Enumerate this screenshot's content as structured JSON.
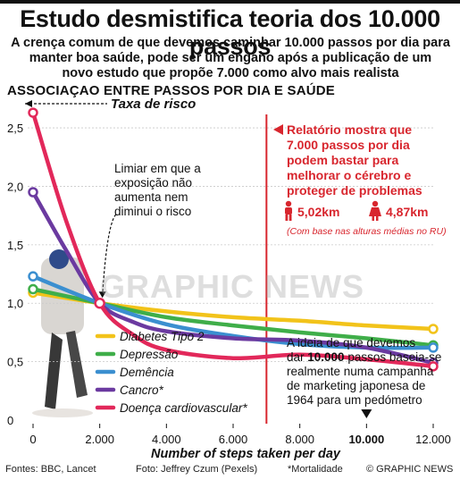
{
  "header": {
    "title": "Estudo desmistifica teoria dos 10.000 passos",
    "subtitle_lines": [
      "A crença comum de que devemos caminhar 10.000 passos por dia para",
      "manter boa saúde, pode ser um engano após a publicação de um",
      "novo estudo que propõe 7.000 como alvo mais realista"
    ],
    "section_label": "ASSOCIAÇAO ENTRE PASSOS POR DIA E SAÚDE"
  },
  "annotations": {
    "risk_rate": "Taxa de risco",
    "threshold_lines": [
      "Limiar em que a",
      "exposição não",
      "aumenta nem",
      "diminui o risco"
    ],
    "report_lines": [
      "Relatório mostra que",
      "7.000 passos por dia",
      "podem bastar para",
      "melhorar o cérebro e",
      "proteger de problemas"
    ],
    "male_distance": "5,02km",
    "female_distance": "4,87km",
    "distance_note": "(Com base nas alturas médias no RU)",
    "idea_lines": [
      [
        {
          "t": "A ideia de que devemos",
          "b": false
        }
      ],
      [
        {
          "t": "dar ",
          "b": false
        },
        {
          "t": "10.000",
          "b": true
        },
        {
          "t": " passos baseia-se",
          "b": false
        }
      ],
      [
        {
          "t": "realmente numa campanha",
          "b": false
        }
      ],
      [
        {
          "t": "de marketing japonesa de",
          "b": false
        }
      ],
      [
        {
          "t": "1964 para um pedómetro",
          "b": false
        }
      ]
    ],
    "watermark": "GRAPHIC NEWS"
  },
  "colors": {
    "red_accent": "#d8262e",
    "diabetes": "#f2c31a",
    "depression": "#3fae49",
    "dementia": "#3b8fd0",
    "cancer": "#6b3aa0",
    "cardio": "#e2285a"
  },
  "footer": {
    "sources": "Fontes: BBC, Lancet",
    "photo": "Foto: Jeffrey Czum (Pexels)",
    "mortality_note": "*Mortalidade",
    "credit": "© GRAPHIC NEWS"
  },
  "chart_data": {
    "type": "line",
    "xlabel": "Number of steps taken per day",
    "ylabel": "Taxa de risco",
    "xlim": [
      0,
      12000
    ],
    "ylim": [
      0,
      2.6
    ],
    "x_ticks": [
      {
        "v": 0,
        "label": "0",
        "bold": false
      },
      {
        "v": 2000,
        "label": "2.000",
        "bold": false
      },
      {
        "v": 4000,
        "label": "4.000",
        "bold": false
      },
      {
        "v": 6000,
        "label": "6.000",
        "bold": false
      },
      {
        "v": 8000,
        "label": "8.000",
        "bold": false
      },
      {
        "v": 10000,
        "label": "10.000",
        "bold": true
      },
      {
        "v": 12000,
        "label": "12.000",
        "bold": false
      }
    ],
    "y_ticks": [
      {
        "v": 0,
        "label": "0"
      },
      {
        "v": 0.5,
        "label": "0,5"
      },
      {
        "v": 1.0,
        "label": "1,0"
      },
      {
        "v": 1.5,
        "label": "1,5"
      },
      {
        "v": 2.0,
        "label": "2,0"
      },
      {
        "v": 2.5,
        "label": "2,5"
      }
    ],
    "reference_x": 7000,
    "threshold": {
      "x": 2000,
      "y": 1.0
    },
    "series": [
      {
        "name": "Diabetes Tipo 2",
        "color_key": "diabetes",
        "points": [
          [
            0,
            1.09
          ],
          [
            2000,
            1.0
          ],
          [
            4000,
            0.93
          ],
          [
            6000,
            0.88
          ],
          [
            8000,
            0.85
          ],
          [
            10000,
            0.81
          ],
          [
            12000,
            0.78
          ]
        ]
      },
      {
        "name": "Depressão",
        "color_key": "depression",
        "points": [
          [
            0,
            1.12
          ],
          [
            2000,
            1.0
          ],
          [
            4000,
            0.88
          ],
          [
            6000,
            0.81
          ],
          [
            8000,
            0.75
          ],
          [
            10000,
            0.7
          ],
          [
            12000,
            0.64
          ]
        ]
      },
      {
        "name": "Demência",
        "color_key": "dementia",
        "points": [
          [
            0,
            1.23
          ],
          [
            2000,
            1.0
          ],
          [
            4000,
            0.82
          ],
          [
            6000,
            0.72
          ],
          [
            8000,
            0.65
          ],
          [
            10000,
            0.62
          ],
          [
            12000,
            0.62
          ]
        ]
      },
      {
        "name": "Cancro*",
        "color_key": "cancer",
        "points": [
          [
            0,
            1.95
          ],
          [
            1000,
            1.45
          ],
          [
            2000,
            1.0
          ],
          [
            3000,
            0.84
          ],
          [
            4000,
            0.76
          ],
          [
            6000,
            0.7
          ],
          [
            8000,
            0.68
          ],
          [
            10000,
            0.62
          ],
          [
            12000,
            0.49
          ]
        ]
      },
      {
        "name": "Doença cardiovascular*",
        "color_key": "cardio",
        "points": [
          [
            0,
            2.63
          ],
          [
            1000,
            1.7
          ],
          [
            2000,
            1.0
          ],
          [
            3000,
            0.73
          ],
          [
            4000,
            0.6
          ],
          [
            6000,
            0.53
          ],
          [
            8000,
            0.56
          ],
          [
            10000,
            0.52
          ],
          [
            12000,
            0.46
          ]
        ]
      }
    ]
  }
}
